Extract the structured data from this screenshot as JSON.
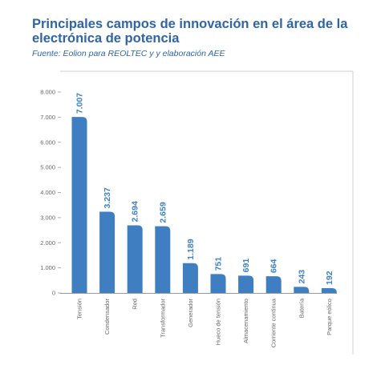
{
  "title": "Principales campos de innovación en el área de la electrónica de potencia",
  "subtitle": "Fuente: Eolion para REOLTEC y y elaboración AEE",
  "colors": {
    "bar": "#3f7fc1",
    "title": "#2f64a6",
    "label": "#3e80c4",
    "frame": "#cfcfcf"
  },
  "chart_data": {
    "type": "bar",
    "categories": [
      "Tensión",
      "Condensador",
      "Red",
      "Transformador",
      "Generador",
      "Hueco de tensión",
      "Almacenamiento",
      "Corriente continua",
      "Batería",
      "Parque eólico"
    ],
    "values": [
      7007,
      3237,
      2694,
      2659,
      1189,
      751,
      691,
      664,
      243,
      192
    ],
    "data_labels": [
      "7.007",
      "3.237",
      "2.694",
      "2.659",
      "1.189",
      "751",
      "691",
      "664",
      "243",
      "192"
    ],
    "ylim": [
      0,
      8000
    ],
    "yticks": [
      0,
      1000,
      2000,
      3000,
      4000,
      5000,
      6000,
      7000,
      8000
    ],
    "ytick_labels": [
      "0",
      "1.000",
      "2.000",
      "3.000",
      "4.000",
      "5.000",
      "6.000",
      "7.000",
      "8.000"
    ],
    "legend": "none",
    "grid": false
  }
}
